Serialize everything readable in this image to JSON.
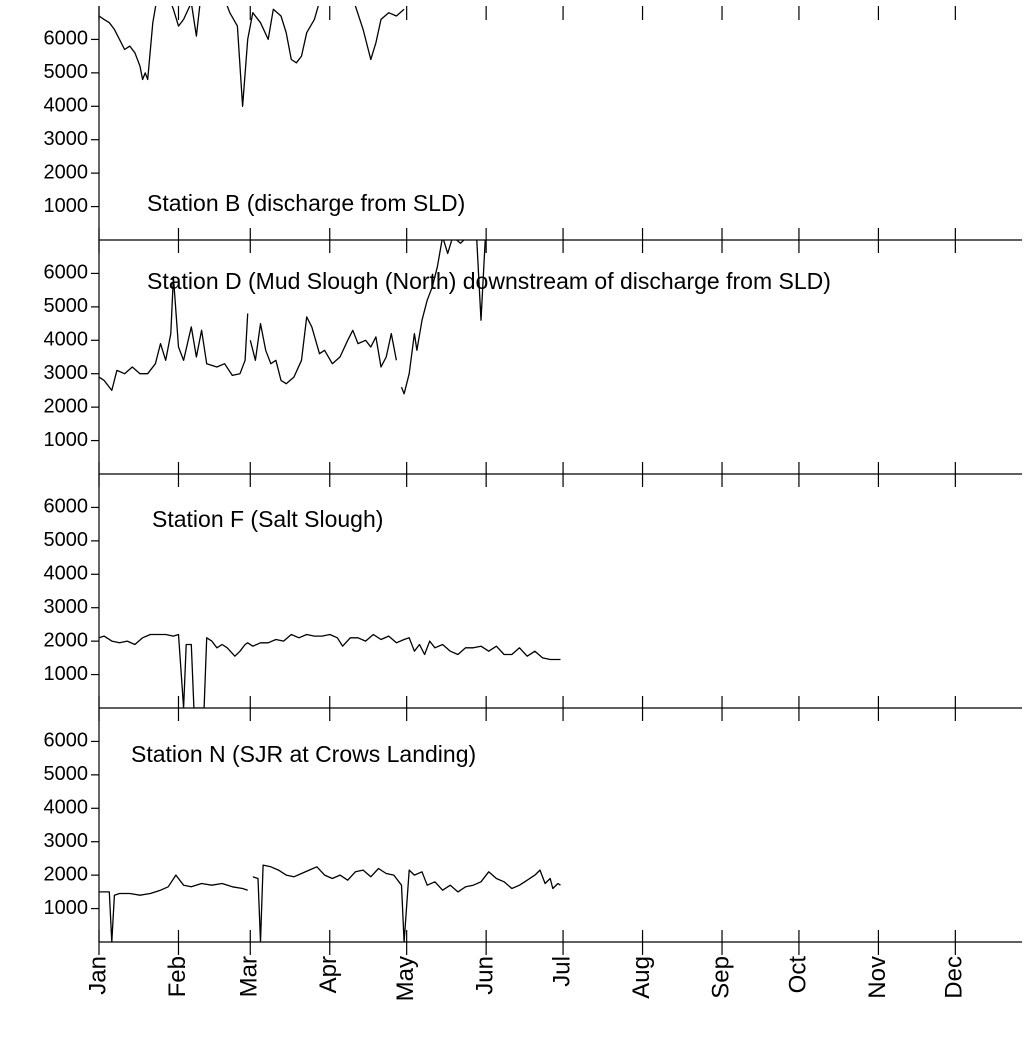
{
  "chart_data": {
    "type": "line",
    "xlim": [
      0,
      360
    ],
    "xticks": [
      {
        "value": 0,
        "label": "Jan"
      },
      {
        "value": 31,
        "label": "Feb"
      },
      {
        "value": 59,
        "label": "Mar"
      },
      {
        "value": 90,
        "label": "Apr"
      },
      {
        "value": 120,
        "label": "May"
      },
      {
        "value": 151,
        "label": "Jun"
      },
      {
        "value": 181,
        "label": "Jul"
      },
      {
        "value": 212,
        "label": "Aug"
      },
      {
        "value": 243,
        "label": "Sep"
      },
      {
        "value": 273,
        "label": "Oct"
      },
      {
        "value": 304,
        "label": "Nov"
      },
      {
        "value": 334,
        "label": "Dec"
      }
    ],
    "ylim": [
      0,
      7000
    ],
    "yticks": [
      1000,
      2000,
      3000,
      4000,
      5000,
      6000
    ],
    "color": "#000000",
    "panels": [
      {
        "title": "Station B (discharge from SLD)",
        "x": [
          0,
          2,
          4,
          6,
          8,
          10,
          12,
          14,
          16,
          17,
          18,
          19,
          21,
          23,
          26,
          29,
          31,
          33,
          36,
          38,
          40,
          44,
          48,
          51,
          54,
          56,
          58,
          60,
          63,
          66,
          68,
          71,
          73,
          75,
          77,
          79,
          81,
          84,
          87,
          90,
          95,
          100,
          103,
          106,
          108,
          110,
          113,
          116,
          119
        ],
        "values": [
          6700,
          6600,
          6500,
          6300,
          6000,
          5700,
          5800,
          5600,
          5200,
          4800,
          5000,
          4800,
          6500,
          7400,
          7500,
          6900,
          6400,
          6600,
          7100,
          6100,
          7500,
          7600,
          7400,
          6800,
          6400,
          4000,
          6000,
          6800,
          6500,
          6000,
          6900,
          6700,
          6200,
          5400,
          5300,
          5500,
          6200,
          6600,
          7400,
          7500,
          7400,
          7000,
          6300,
          5400,
          5900,
          6600,
          6800,
          6700,
          6900
        ]
      },
      {
        "title": "Station D (Mud Slough (North) downstream of discharge from SLD)",
        "x": [
          0,
          2,
          4,
          5,
          7,
          10,
          13,
          16,
          19,
          22,
          24,
          26,
          28,
          29,
          31,
          33,
          36,
          38,
          40,
          42,
          46,
          49,
          52,
          55,
          57,
          58,
          58.5,
          59,
          61,
          63,
          65,
          67,
          69,
          71,
          73,
          76,
          79,
          81,
          83,
          86,
          88,
          91,
          94,
          97,
          99,
          101,
          104,
          106,
          108,
          110,
          112,
          114,
          116,
          117,
          118,
          119,
          121,
          123,
          124,
          126,
          128,
          130,
          132,
          134,
          136,
          138,
          141,
          145,
          147,
          149,
          151
        ],
        "values": [
          2900,
          2800,
          2600,
          2500,
          3100,
          3000,
          3200,
          3000,
          3000,
          3300,
          3900,
          3400,
          4200,
          5900,
          3800,
          3400,
          4400,
          3500,
          4300,
          3300,
          3200,
          3300,
          2950,
          3000,
          3400,
          4800,
          null,
          4000,
          3400,
          4500,
          3700,
          3300,
          3400,
          2800,
          2700,
          2900,
          3400,
          4700,
          4400,
          3600,
          3700,
          3300,
          3500,
          4000,
          4300,
          3900,
          4000,
          3800,
          4100,
          3200,
          3500,
          4200,
          3400,
          null,
          2600,
          2400,
          3000,
          4200,
          3700,
          4600,
          5200,
          5600,
          6200,
          7100,
          6600,
          7100,
          6900,
          7200,
          7500,
          4600,
          7500
        ]
      },
      {
        "title": "Station F (Salt Slough)",
        "x": [
          0,
          2,
          5,
          8,
          11,
          14,
          17,
          20,
          23,
          26,
          29,
          31,
          33,
          34,
          36,
          37,
          41,
          42,
          44,
          46,
          48,
          50,
          53,
          55,
          57,
          58,
          60,
          63,
          66,
          69,
          72,
          75,
          78,
          81,
          84,
          87,
          90,
          93,
          95,
          98,
          101,
          104,
          107,
          110,
          113,
          116,
          119,
          121,
          123,
          125,
          127,
          129,
          131,
          134,
          137,
          140,
          143,
          146,
          149,
          152,
          155,
          158,
          161,
          164,
          167,
          170,
          173,
          176,
          180
        ],
        "values": [
          2100,
          2150,
          2000,
          1950,
          2000,
          1900,
          2100,
          2200,
          2200,
          2200,
          2150,
          2200,
          0,
          1900,
          1900,
          0,
          0,
          2100,
          2000,
          1800,
          1900,
          1800,
          1550,
          1700,
          1900,
          1950,
          1850,
          1950,
          1950,
          2050,
          2000,
          2200,
          2100,
          2200,
          2150,
          2150,
          2200,
          2100,
          1850,
          2100,
          2100,
          2000,
          2200,
          2050,
          2150,
          1950,
          2050,
          2100,
          1700,
          1900,
          1600,
          2000,
          1800,
          1900,
          1700,
          1600,
          1800,
          1800,
          1850,
          1700,
          1850,
          1600,
          1600,
          1800,
          1550,
          1700,
          1500,
          1450,
          1450
        ]
      },
      {
        "title": "Station N (SJR at Crows Landing)",
        "x": [
          0,
          4,
          5,
          6,
          8,
          12,
          16,
          20,
          24,
          27,
          30,
          33,
          36,
          40,
          44,
          48,
          52,
          56,
          58,
          59,
          60,
          62,
          63,
          64,
          67,
          70,
          73,
          76,
          79,
          82,
          85,
          88,
          91,
          94,
          97,
          100,
          103,
          106,
          109,
          112,
          115,
          118,
          119,
          121,
          123,
          126,
          128,
          131,
          134,
          137,
          140,
          143,
          146,
          149,
          152,
          155,
          158,
          161,
          164,
          167,
          170,
          172,
          174,
          176,
          177,
          179,
          180
        ],
        "values": [
          1500,
          1500,
          0,
          1400,
          1450,
          1450,
          1400,
          1450,
          1550,
          1650,
          2000,
          1700,
          1650,
          1750,
          1700,
          1750,
          1650,
          1600,
          1550,
          null,
          1950,
          1900,
          0,
          2300,
          2250,
          2150,
          2000,
          1950,
          2050,
          2150,
          2250,
          2000,
          1900,
          2000,
          1850,
          2100,
          2150,
          1950,
          2200,
          2050,
          2000,
          1700,
          0,
          2150,
          2000,
          2100,
          1700,
          1800,
          1550,
          1700,
          1500,
          1650,
          1700,
          1800,
          2100,
          1900,
          1800,
          1600,
          1700,
          1850,
          2000,
          2150,
          1750,
          1900,
          1600,
          1750,
          1700
        ]
      }
    ]
  }
}
